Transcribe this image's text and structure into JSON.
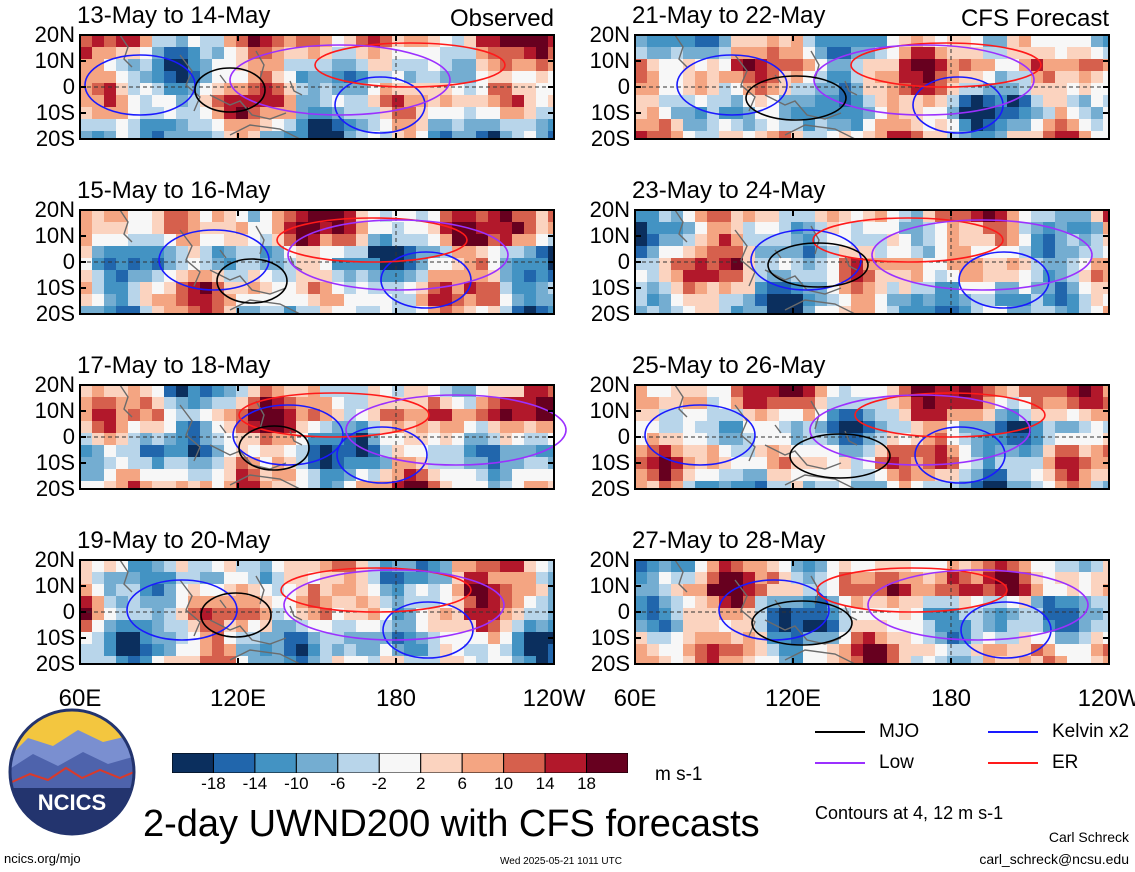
{
  "chart_data": {
    "type": "heatmap",
    "title": "2-day UWND200 with CFS forecasts",
    "units": "m s-1",
    "x_ticks": [
      "60E",
      "120E",
      "180",
      "120W"
    ],
    "y_ticks": [
      "20N",
      "10N",
      "0",
      "10S",
      "20S"
    ],
    "ylim": [
      -20,
      20
    ],
    "xlim_deg_east": [
      60,
      240
    ],
    "colorbar": {
      "labels": [
        "-18",
        "-14",
        "-10",
        "-6",
        "-2",
        "2",
        "6",
        "10",
        "14",
        "18"
      ],
      "colors": [
        "#0b2f5e",
        "#2166ac",
        "#4393c3",
        "#74add1",
        "#b8d5ea",
        "#f7f7f7",
        "#fbd3bf",
        "#f4a582",
        "#d6604d",
        "#b2182b",
        "#67001f"
      ]
    },
    "contour_note": "Contours at 4, 12 m s-1",
    "legend": [
      {
        "label": "MJO",
        "color": "#000000"
      },
      {
        "label": "Kelvin x2",
        "color": "#1a1aff"
      },
      {
        "label": "Low",
        "color": "#9b30ff"
      },
      {
        "label": "ER",
        "color": "#ff1a1a"
      }
    ],
    "panels": [
      {
        "title": "13-May to 14-May",
        "tag": "Observed"
      },
      {
        "title": "21-May to 22-May",
        "tag": "CFS Forecast"
      },
      {
        "title": "15-May to 16-May",
        "tag": ""
      },
      {
        "title": "23-May to 24-May",
        "tag": ""
      },
      {
        "title": "17-May to 18-May",
        "tag": ""
      },
      {
        "title": "25-May to 26-May",
        "tag": ""
      },
      {
        "title": "19-May to 20-May",
        "tag": ""
      },
      {
        "title": "27-May to 28-May",
        "tag": ""
      }
    ]
  },
  "footer": {
    "logo_text": "NCICS",
    "url": "ncics.org/mjo",
    "timestamp": "Wed 2025-05-21 1011 UTC",
    "author": "Carl Schreck",
    "email": "carl_schreck@ncsu.edu"
  }
}
